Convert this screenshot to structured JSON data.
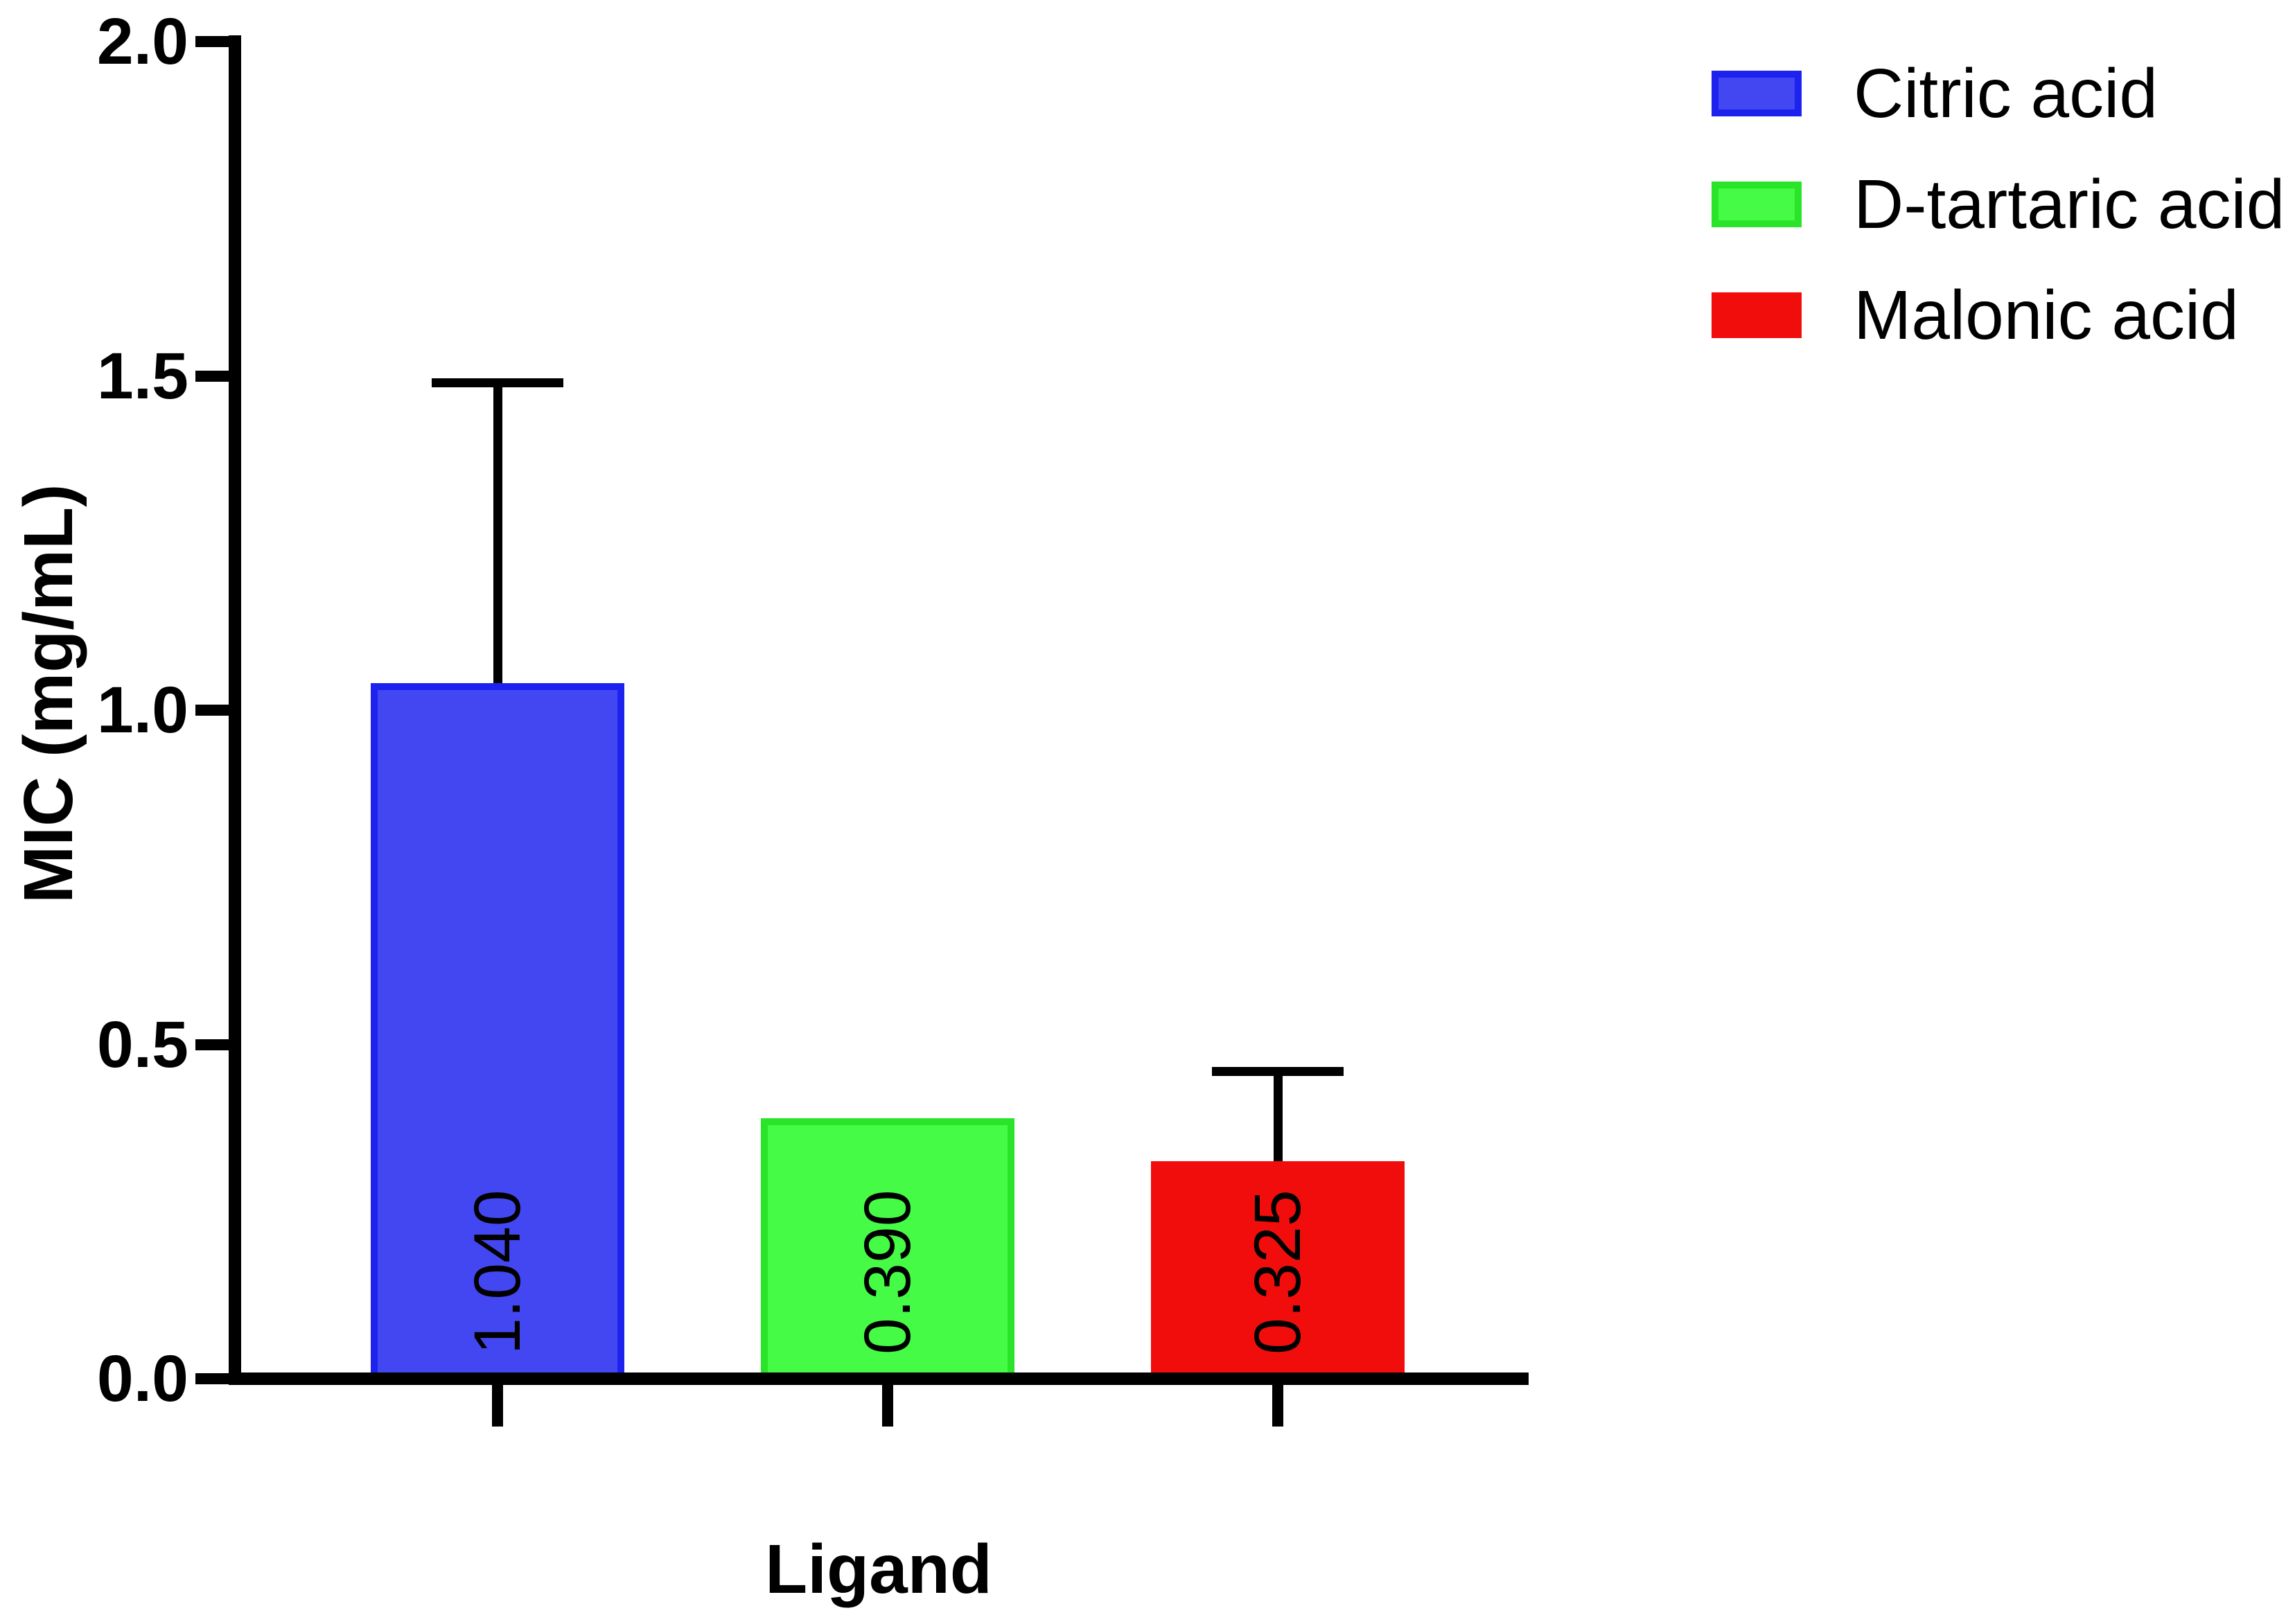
{
  "chart_data": {
    "type": "bar",
    "title": "",
    "xlabel": "Ligand",
    "ylabel": "MIC (mg/mL)",
    "ylim": [
      0,
      2.0
    ],
    "yticks": [
      0.0,
      0.5,
      1.0,
      1.5,
      2.0
    ],
    "ytick_labels": [
      "0.0",
      "0.5",
      "1.0",
      "1.5",
      "2.0"
    ],
    "grid": false,
    "legend_position": "top-right",
    "categories": [
      "Citric acid",
      "D-tartaric acid",
      "Malonic acid"
    ],
    "values": [
      1.04,
      0.39,
      0.325
    ],
    "bar_value_labels": [
      "1.040",
      "0.390",
      "0.325"
    ],
    "error_bar_top": [
      1.49,
      null,
      0.46
    ],
    "series_colors": [
      {
        "name": "Citric acid",
        "fill": "#4347f2",
        "border": "#1e22ef"
      },
      {
        "name": "D-tartaric acid",
        "fill": "#46fb46",
        "border": "#29e429"
      },
      {
        "name": "Malonic acid",
        "fill": "#f20d0d",
        "border": "#f20d0d"
      }
    ],
    "axis_color": "#000000",
    "text_color": "#000000",
    "background_color": "#ffffff"
  },
  "legend": {
    "items": [
      {
        "label": "Citric acid"
      },
      {
        "label": "D-tartaric acid"
      },
      {
        "label": "Malonic acid"
      }
    ]
  }
}
